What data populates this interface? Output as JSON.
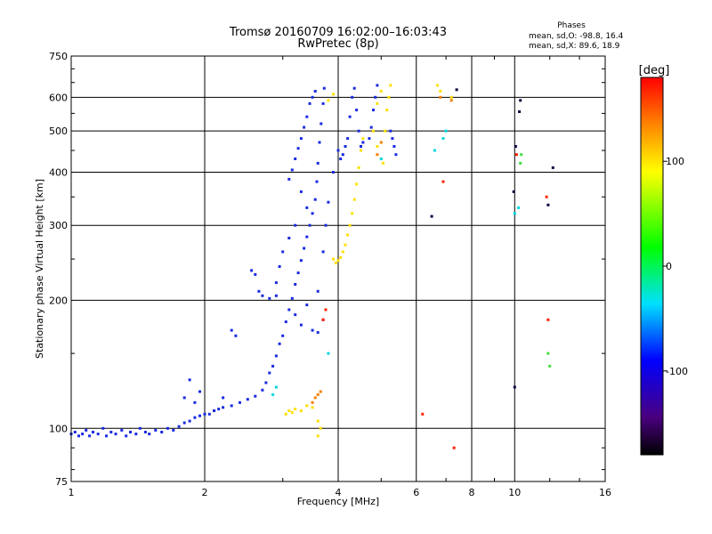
{
  "header": {
    "title_line1": "Tromsø 20160709 16:02:00–16:03:43",
    "title_line2": "RwPretec (8p)"
  },
  "phases_box": {
    "title": "Phases",
    "line_o": "mean, sd,O:  -98.8, 16.4",
    "line_x": "mean, sd,X:   89.6, 18.9"
  },
  "chart_data": {
    "type": "scatter",
    "xlabel": "Frequency [MHz]",
    "ylabel": "Stationary phase Virtual Height [km]",
    "xscale": "log",
    "yscale": "log",
    "xlim": [
      1,
      16
    ],
    "ylim": [
      75,
      750
    ],
    "x_ticks": [
      1,
      2,
      4,
      6,
      8,
      10,
      16
    ],
    "x_tick_labels": [
      "1",
      "2",
      "4",
      "6",
      "8",
      "10",
      "16"
    ],
    "y_ticks": [
      75,
      100,
      200,
      300,
      400,
      500,
      600,
      750
    ],
    "y_tick_labels": [
      "75",
      "100",
      "200",
      "300",
      "400",
      "500",
      "600",
      "750"
    ],
    "grid": true,
    "colorbar": {
      "label": "[deg]",
      "range": [
        -180,
        180
      ],
      "ticks": [
        -100,
        0,
        100
      ],
      "tick_labels": [
        "-100",
        "0",
        "100"
      ]
    },
    "series": [
      {
        "color": "#1a2be0",
        "points": [
          [
            1.0,
            97
          ],
          [
            1.02,
            98
          ],
          [
            1.04,
            96
          ],
          [
            1.06,
            97
          ],
          [
            1.08,
            99
          ],
          [
            1.1,
            96
          ],
          [
            1.12,
            98
          ],
          [
            1.15,
            97
          ],
          [
            1.18,
            100
          ],
          [
            1.2,
            96
          ],
          [
            1.23,
            98
          ],
          [
            1.26,
            97
          ],
          [
            1.3,
            99
          ],
          [
            1.33,
            96
          ],
          [
            1.36,
            98
          ],
          [
            1.4,
            97
          ],
          [
            1.43,
            100
          ],
          [
            1.47,
            98
          ],
          [
            1.5,
            97
          ],
          [
            1.55,
            99
          ],
          [
            1.6,
            98
          ],
          [
            1.65,
            100
          ],
          [
            1.7,
            99
          ],
          [
            1.75,
            101
          ],
          [
            1.8,
            103
          ],
          [
            1.85,
            104
          ],
          [
            1.9,
            106
          ],
          [
            1.95,
            107
          ],
          [
            2.0,
            108
          ],
          [
            2.05,
            108
          ],
          [
            2.1,
            110
          ],
          [
            2.15,
            111
          ],
          [
            2.2,
            112
          ],
          [
            2.3,
            113
          ],
          [
            2.4,
            115
          ],
          [
            2.5,
            117
          ],
          [
            2.6,
            119
          ],
          [
            2.7,
            123
          ],
          [
            2.75,
            128
          ],
          [
            2.8,
            135
          ],
          [
            2.85,
            140
          ],
          [
            2.9,
            148
          ],
          [
            2.95,
            158
          ],
          [
            3.0,
            165
          ],
          [
            3.05,
            178
          ],
          [
            3.1,
            190
          ],
          [
            3.15,
            202
          ],
          [
            3.2,
            218
          ],
          [
            3.25,
            232
          ],
          [
            3.3,
            248
          ],
          [
            3.35,
            265
          ],
          [
            3.4,
            282
          ],
          [
            3.45,
            300
          ],
          [
            3.5,
            320
          ],
          [
            3.55,
            345
          ],
          [
            3.58,
            380
          ],
          [
            3.6,
            420
          ],
          [
            3.63,
            470
          ],
          [
            3.66,
            520
          ],
          [
            3.7,
            580
          ],
          [
            3.72,
            630
          ],
          [
            3.4,
            540
          ],
          [
            3.45,
            580
          ],
          [
            3.5,
            600
          ],
          [
            3.55,
            620
          ],
          [
            3.35,
            510
          ],
          [
            3.3,
            480
          ],
          [
            3.25,
            455
          ],
          [
            3.2,
            430
          ],
          [
            3.15,
            405
          ],
          [
            3.1,
            385
          ],
          [
            3.3,
            360
          ],
          [
            3.4,
            330
          ],
          [
            3.2,
            300
          ],
          [
            3.1,
            280
          ],
          [
            3.0,
            260
          ],
          [
            2.95,
            240
          ],
          [
            2.9,
            220
          ],
          [
            2.6,
            230
          ],
          [
            2.55,
            235
          ],
          [
            2.65,
            210
          ],
          [
            2.7,
            205
          ],
          [
            2.8,
            202
          ],
          [
            2.9,
            205
          ],
          [
            3.5,
            170
          ],
          [
            3.6,
            168
          ],
          [
            3.7,
            180
          ],
          [
            3.3,
            175
          ],
          [
            3.2,
            185
          ],
          [
            3.4,
            195
          ],
          [
            3.6,
            210
          ],
          [
            3.7,
            260
          ],
          [
            3.75,
            300
          ],
          [
            3.8,
            340
          ],
          [
            3.9,
            400
          ],
          [
            4.0,
            450
          ],
          [
            4.05,
            430
          ],
          [
            4.1,
            440
          ],
          [
            4.15,
            460
          ],
          [
            4.2,
            480
          ],
          [
            4.25,
            540
          ],
          [
            4.3,
            600
          ],
          [
            4.35,
            630
          ],
          [
            4.4,
            560
          ],
          [
            4.45,
            500
          ],
          [
            4.5,
            460
          ],
          [
            4.55,
            470
          ],
          [
            4.7,
            480
          ],
          [
            4.75,
            510
          ],
          [
            4.8,
            560
          ],
          [
            4.85,
            600
          ],
          [
            4.9,
            640
          ],
          [
            5.35,
            460
          ],
          [
            5.3,
            480
          ],
          [
            5.25,
            500
          ],
          [
            5.4,
            440
          ],
          [
            1.9,
            115
          ],
          [
            1.95,
            122
          ],
          [
            1.85,
            130
          ],
          [
            1.8,
            118
          ],
          [
            2.1,
            110
          ],
          [
            2.2,
            118
          ],
          [
            2.3,
            170
          ],
          [
            2.35,
            165
          ]
        ]
      },
      {
        "color": "#ffe000",
        "points": [
          [
            3.05,
            108
          ],
          [
            3.1,
            110
          ],
          [
            3.15,
            109
          ],
          [
            3.2,
            111
          ],
          [
            3.3,
            110
          ],
          [
            3.4,
            113
          ],
          [
            3.5,
            112
          ],
          [
            3.6,
            104
          ],
          [
            3.65,
            100
          ],
          [
            3.6,
            96
          ],
          [
            3.9,
            250
          ],
          [
            3.95,
            245
          ],
          [
            4.0,
            248
          ],
          [
            4.05,
            252
          ],
          [
            4.1,
            260
          ],
          [
            4.15,
            270
          ],
          [
            4.2,
            285
          ],
          [
            4.25,
            300
          ],
          [
            4.3,
            320
          ],
          [
            4.35,
            345
          ],
          [
            4.4,
            375
          ],
          [
            4.45,
            410
          ],
          [
            4.5,
            450
          ],
          [
            4.55,
            480
          ],
          [
            4.8,
            500
          ],
          [
            4.9,
            460
          ],
          [
            5.0,
            430
          ],
          [
            5.05,
            420
          ],
          [
            5.1,
            500
          ],
          [
            5.15,
            560
          ],
          [
            5.2,
            600
          ],
          [
            5.0,
            620
          ],
          [
            4.9,
            580
          ],
          [
            5.25,
            640
          ],
          [
            6.7,
            640
          ],
          [
            6.8,
            620
          ],
          [
            7.2,
            600
          ],
          [
            3.8,
            590
          ],
          [
            3.9,
            610
          ]
        ]
      },
      {
        "color": "#f08000",
        "points": [
          [
            3.55,
            118
          ],
          [
            3.6,
            120
          ],
          [
            3.65,
            122
          ],
          [
            3.5,
            115
          ],
          [
            4.9,
            440
          ],
          [
            5.0,
            470
          ],
          [
            6.8,
            600
          ],
          [
            7.2,
            590
          ]
        ]
      },
      {
        "color": "#00d8e0",
        "points": [
          [
            2.85,
            120
          ],
          [
            2.9,
            125
          ],
          [
            5.0,
            430
          ],
          [
            6.9,
            480
          ],
          [
            7.0,
            500
          ],
          [
            6.6,
            450
          ],
          [
            10.0,
            320
          ],
          [
            10.2,
            330
          ],
          [
            3.8,
            150
          ]
        ]
      },
      {
        "color": "#ff2000",
        "points": [
          [
            3.75,
            190
          ],
          [
            3.7,
            180
          ],
          [
            6.2,
            108
          ],
          [
            6.9,
            380
          ],
          [
            7.3,
            90
          ],
          [
            10.1,
            440
          ],
          [
            11.8,
            350
          ],
          [
            11.9,
            180
          ]
        ]
      },
      {
        "color": "#40e040",
        "points": [
          [
            10.3,
            420
          ],
          [
            10.35,
            440
          ],
          [
            11.9,
            150
          ],
          [
            12.0,
            140
          ]
        ]
      },
      {
        "color": "#100040",
        "points": [
          [
            7.4,
            625
          ],
          [
            10.05,
            460
          ],
          [
            10.3,
            590
          ],
          [
            10.25,
            555
          ],
          [
            9.95,
            360
          ],
          [
            6.5,
            315
          ],
          [
            10.0,
            125
          ],
          [
            12.2,
            410
          ],
          [
            11.9,
            335
          ]
        ]
      }
    ]
  }
}
